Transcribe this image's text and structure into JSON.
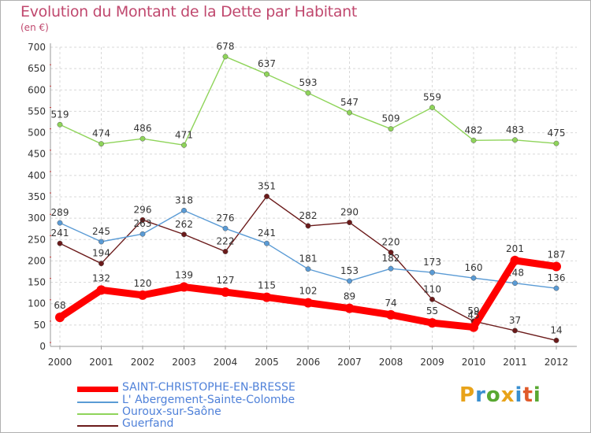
{
  "header": {
    "title": "Evolution du Montant de la Dette par Habitant",
    "subtitle": "(en €)"
  },
  "logo": {
    "letters": [
      "P",
      "r",
      "o",
      "x",
      "i",
      "t",
      "i"
    ],
    "colors": [
      "#e8a31a",
      "#3a8fd0",
      "#58a832",
      "#e8a31a",
      "#3a8fd0",
      "#e05a2a",
      "#58a832"
    ]
  },
  "chart_data": {
    "type": "line",
    "title": "Evolution du Montant de la Dette par Habitant",
    "ylabel": "(en €)",
    "xlabel": "",
    "ylim": [
      0,
      700
    ],
    "yticks": [
      0,
      50,
      100,
      150,
      200,
      250,
      300,
      350,
      400,
      450,
      500,
      550,
      600,
      650,
      700
    ],
    "categories": [
      "2000",
      "2001",
      "2002",
      "2003",
      "2004",
      "2005",
      "2006",
      "2007",
      "2008",
      "2009",
      "2010",
      "2011",
      "2012"
    ],
    "grid": true,
    "legend_position": "bottom",
    "series": [
      {
        "name": "Guerfand",
        "color": "#6b1a1a",
        "thick": false,
        "values": [
          241,
          194,
          296,
          262,
          222,
          351,
          282,
          290,
          220,
          110,
          59,
          37,
          14
        ]
      },
      {
        "name": "L' Abergement-Sainte-Colombe",
        "color": "#5a9bd5",
        "thick": false,
        "values": [
          289,
          245,
          263,
          318,
          276,
          241,
          181,
          153,
          182,
          173,
          160,
          148,
          136
        ]
      },
      {
        "name": "Ouroux-sur-Saône",
        "color": "#8fd45a",
        "thick": false,
        "values": [
          519,
          474,
          486,
          471,
          678,
          637,
          593,
          547,
          509,
          559,
          482,
          483,
          475
        ]
      },
      {
        "name": "SAINT-CHRISTOPHE-EN-BRESSE",
        "color": "#ff0000",
        "thick": true,
        "values": [
          68,
          132,
          120,
          139,
          127,
          115,
          102,
          89,
          74,
          55,
          45,
          201,
          187
        ]
      }
    ],
    "legend": [
      {
        "name": "SAINT-CHRISTOPHE-EN-BRESSE",
        "color": "#ff0000",
        "label_color": "#4f81d9"
      },
      {
        "name": "L' Abergement-Sainte-Colombe",
        "color": "#5a9bd5",
        "label_color": "#4f81d9"
      },
      {
        "name": "Ouroux-sur-Saône",
        "color": "#8fd45a",
        "label_color": "#4f81d9"
      },
      {
        "name": "Guerfand",
        "color": "#6b1a1a",
        "label_color": "#4f81d9"
      }
    ]
  }
}
